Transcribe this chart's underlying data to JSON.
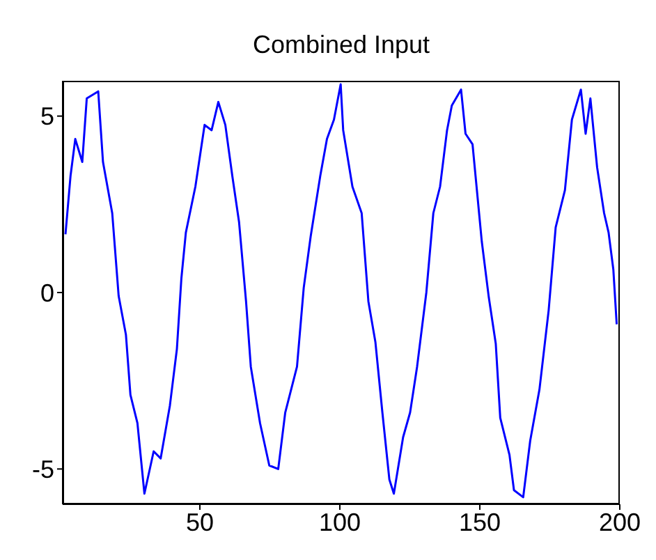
{
  "chart_data": {
    "type": "line",
    "title": "Combined Input",
    "xlim": [
      1,
      200
    ],
    "xticks": [
      50,
      100,
      150,
      200
    ],
    "ylim": [
      -6,
      6
    ],
    "yticks": [
      -5,
      0,
      5
    ],
    "grid": false,
    "legend": false,
    "marker": "none",
    "line_style": "solid",
    "series": [
      {
        "color": "#0000ff",
        "x": [
          2,
          3.8,
          5.5,
          8,
          9.6,
          13.7,
          15.4,
          18.7,
          21,
          23.6,
          25.2,
          27.7,
          30.2,
          33.5,
          36,
          39.3,
          41.8,
          43.4,
          45,
          48.4,
          51.7,
          54.2,
          56.6,
          59.1,
          61.6,
          64,
          66.5,
          68.2,
          71.5,
          74.8,
          78,
          80.5,
          84.7,
          87.1,
          89.6,
          93,
          95.4,
          97.9,
          100.3,
          101.2,
          104.5,
          107.8,
          110.2,
          112.7,
          115.2,
          117.7,
          119.3,
          122.6,
          125.1,
          127.6,
          130.9,
          133.4,
          135.8,
          138.3,
          140,
          143.3,
          144.9,
          147.4,
          150.7,
          153.2,
          155.7,
          157.3,
          160.6,
          162.2,
          165.5,
          168,
          171.3,
          174.6,
          177.1,
          180.4,
          182.9,
          186.1,
          187.8,
          189.5,
          191.9,
          194.4,
          196,
          197.7,
          198.9
        ],
        "values": [
          1.65,
          3.3,
          4.35,
          3.7,
          5.5,
          5.7,
          3.7,
          2.25,
          -0.1,
          -1.2,
          -2.9,
          -3.7,
          -5.7,
          -4.5,
          -4.7,
          -3.2,
          -1.6,
          0.4,
          1.7,
          3,
          4.75,
          4.6,
          5.4,
          4.75,
          3.3,
          2,
          -0.25,
          -2.1,
          -3.7,
          -4.9,
          -5,
          -3.4,
          -2.1,
          0.13,
          1.6,
          3.3,
          4.35,
          4.9,
          5.9,
          4.6,
          3,
          2.25,
          -0.25,
          -1.4,
          -3.4,
          -5.3,
          -5.7,
          -4.1,
          -3.4,
          -2.1,
          0,
          2.25,
          3,
          4.6,
          5.3,
          5.75,
          4.5,
          4.2,
          1.45,
          -0.13,
          -1.45,
          -3.55,
          -4.6,
          -5.6,
          -5.8,
          -4.2,
          -2.75,
          -0.5,
          1.85,
          2.9,
          4.9,
          5.75,
          4.5,
          5.5,
          3.55,
          2.25,
          1.7,
          0.65,
          -0.9
        ]
      }
    ]
  }
}
